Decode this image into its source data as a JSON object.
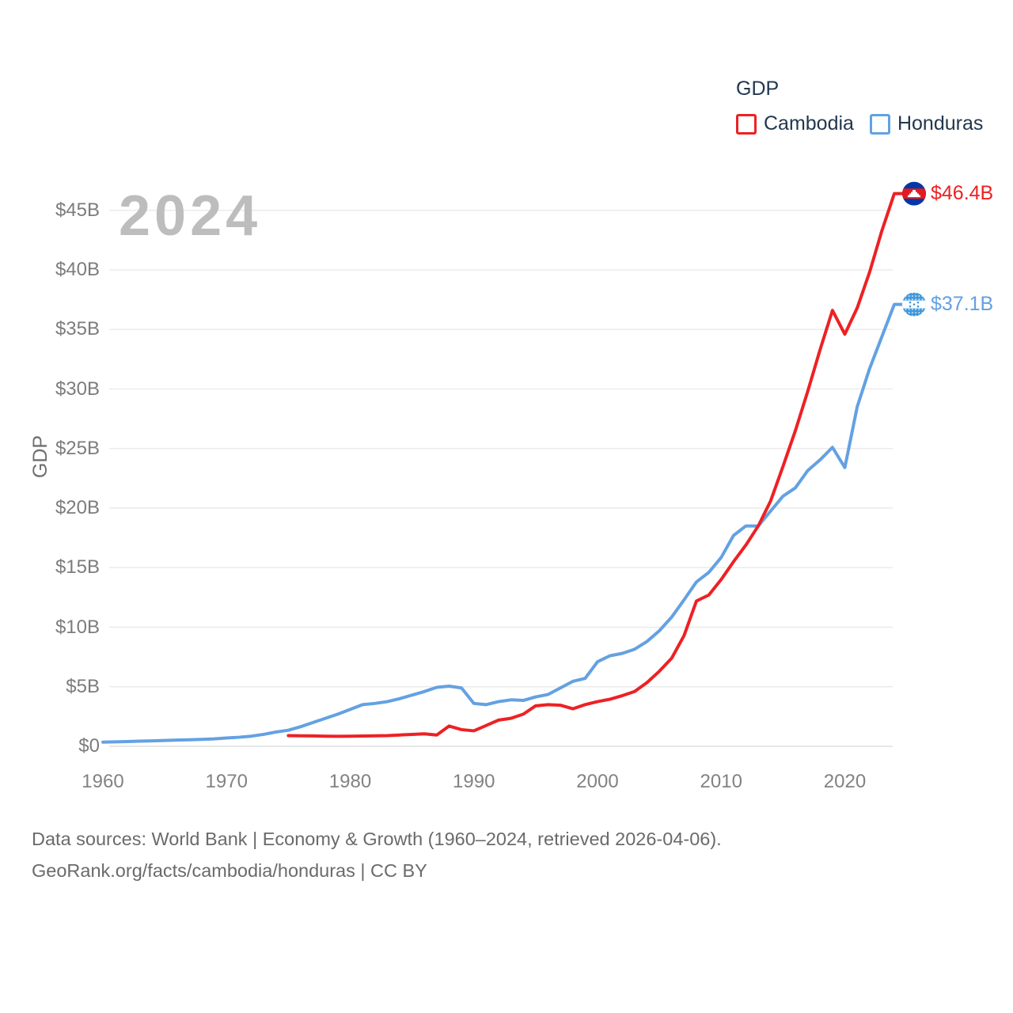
{
  "watermark": "2024",
  "legend": {
    "title": "GDP"
  },
  "footer": {
    "line1": "Data sources: World Bank | Economy & Growth (1960–2024, retrieved 2026-04-06).",
    "line2": "GeoRank.org/facts/cambodia/honduras | CC BY"
  },
  "colors": {
    "cambodia_line": "#ed2124",
    "honduras_line": "#63a1e2",
    "grid": "#e8e8e8",
    "zero_line": "#d9d9d9",
    "axis_text": "#7c7c7c",
    "legend_text": "#22374e",
    "watermark_text": "#bdbdbd",
    "footer_text": "#6a6a6a"
  },
  "chart_data": {
    "type": "line",
    "title": "GDP",
    "xlabel": "",
    "ylabel": "GDP",
    "grid": true,
    "legend_position": "top-right",
    "xlim": [
      1960,
      2025.8
    ],
    "ylim": [
      0,
      47
    ],
    "x_ticks": [
      1960,
      1970,
      1980,
      1990,
      2000,
      2010,
      2020
    ],
    "y_ticks": [
      {
        "label": "$0",
        "value": 0
      },
      {
        "label": "$5B",
        "value": 5
      },
      {
        "label": "$10B",
        "value": 10
      },
      {
        "label": "$15B",
        "value": 15
      },
      {
        "label": "$20B",
        "value": 20
      },
      {
        "label": "$25B",
        "value": 25
      },
      {
        "label": "$30B",
        "value": 30
      },
      {
        "label": "$35B",
        "value": 35
      },
      {
        "label": "$40B",
        "value": 40
      },
      {
        "label": "$45B",
        "value": 45
      }
    ],
    "series": [
      {
        "name": "Cambodia",
        "color": "#ed2124",
        "end_label": "$46.4B",
        "flag": "cambodia-flag",
        "years": [
          1975,
          1976,
          1977,
          1978,
          1979,
          1980,
          1981,
          1982,
          1983,
          1984,
          1985,
          1986,
          1987,
          1988,
          1989,
          1990,
          1991,
          1992,
          1993,
          1994,
          1995,
          1996,
          1997,
          1998,
          1999,
          2000,
          2001,
          2002,
          2003,
          2004,
          2005,
          2006,
          2007,
          2008,
          2009,
          2010,
          2011,
          2012,
          2013,
          2014,
          2015,
          2016,
          2017,
          2018,
          2019,
          2020,
          2021,
          2022,
          2023,
          2024
        ],
        "values": [
          0.9,
          0.88,
          0.87,
          0.85,
          0.84,
          0.85,
          0.86,
          0.88,
          0.9,
          0.95,
          1.0,
          1.05,
          0.95,
          1.7,
          1.4,
          1.3,
          1.75,
          2.2,
          2.35,
          2.7,
          3.4,
          3.5,
          3.45,
          3.15,
          3.5,
          3.75,
          3.95,
          4.25,
          4.6,
          5.35,
          6.3,
          7.4,
          9.3,
          12.2,
          12.7,
          14.0,
          15.5,
          16.9,
          18.5,
          20.6,
          23.5,
          26.5,
          29.8,
          33.3,
          36.6,
          34.6,
          36.8,
          39.8,
          43.3,
          46.4
        ]
      },
      {
        "name": "Honduras",
        "color": "#63a1e2",
        "end_label": "$37.1B",
        "flag": "honduras-flag",
        "years": [
          1960,
          1961,
          1962,
          1963,
          1964,
          1965,
          1966,
          1967,
          1968,
          1969,
          1970,
          1971,
          1972,
          1973,
          1974,
          1975,
          1976,
          1977,
          1978,
          1979,
          1980,
          1981,
          1982,
          1983,
          1984,
          1985,
          1986,
          1987,
          1988,
          1989,
          1990,
          1991,
          1992,
          1993,
          1994,
          1995,
          1996,
          1997,
          1998,
          1999,
          2000,
          2001,
          2002,
          2003,
          2004,
          2005,
          2006,
          2007,
          2008,
          2009,
          2010,
          2011,
          2012,
          2013,
          2014,
          2015,
          2016,
          2017,
          2018,
          2019,
          2020,
          2021,
          2022,
          2023,
          2024
        ],
        "values": [
          0.35,
          0.37,
          0.4,
          0.43,
          0.46,
          0.49,
          0.52,
          0.55,
          0.58,
          0.62,
          0.7,
          0.76,
          0.85,
          1.0,
          1.2,
          1.35,
          1.65,
          2.0,
          2.35,
          2.7,
          3.1,
          3.5,
          3.6,
          3.75,
          4.0,
          4.3,
          4.6,
          4.95,
          5.05,
          4.9,
          3.6,
          3.5,
          3.75,
          3.9,
          3.85,
          4.15,
          4.35,
          4.9,
          5.45,
          5.7,
          7.1,
          7.6,
          7.8,
          8.15,
          8.8,
          9.7,
          10.85,
          12.3,
          13.8,
          14.6,
          15.85,
          17.7,
          18.5,
          18.5,
          19.75,
          21.0,
          21.7,
          23.15,
          24.05,
          25.1,
          23.4,
          28.5,
          31.7,
          34.4,
          37.1
        ]
      }
    ]
  }
}
